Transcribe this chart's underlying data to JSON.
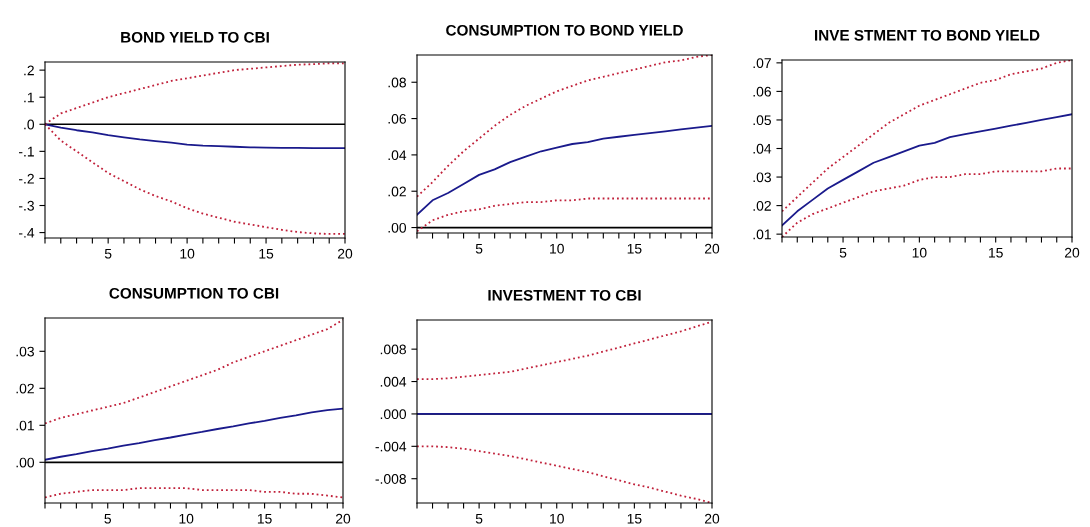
{
  "chart_data": [
    {
      "type": "line",
      "title": "BOND YIELD TO CBI",
      "x": [
        1,
        2,
        3,
        4,
        5,
        6,
        7,
        8,
        9,
        10,
        11,
        12,
        13,
        14,
        15,
        16,
        17,
        18,
        19,
        20
      ],
      "xlim": [
        1,
        20
      ],
      "xticks": [
        {
          "value": 1,
          "label": null
        },
        {
          "value": 2,
          "label": null
        },
        {
          "value": 3,
          "label": null
        },
        {
          "value": 4,
          "label": null
        },
        5,
        {
          "value": 6,
          "label": null
        },
        {
          "value": 7,
          "label": null
        },
        {
          "value": 8,
          "label": null
        },
        {
          "value": 9,
          "label": null
        },
        10,
        {
          "value": 11,
          "label": null
        },
        {
          "value": 12,
          "label": null
        },
        {
          "value": 13,
          "label": null
        },
        {
          "value": 14,
          "label": null
        },
        15,
        {
          "value": 16,
          "label": null
        },
        {
          "value": 17,
          "label": null
        },
        {
          "value": 18,
          "label": null
        },
        {
          "value": 19,
          "label": null
        },
        20
      ],
      "ylim": [
        -0.42,
        0.23
      ],
      "yticks": [
        {
          "value": 0.2,
          "label": ".2"
        },
        {
          "value": 0.1,
          "label": ".1"
        },
        {
          "value": 0,
          "label": ".0"
        },
        {
          "value": -0.1,
          "label": "-.1"
        },
        {
          "value": -0.2,
          "label": "-.2"
        },
        {
          "value": -0.3,
          "label": "-.3"
        },
        {
          "value": -0.4,
          "label": "-.4"
        }
      ],
      "grid": false,
      "legend": false,
      "ref_lines": [
        {
          "axis": "y",
          "value": 0,
          "color": "#000000"
        }
      ],
      "series": [
        {
          "color": "#c0203a",
          "line_style": "dotted",
          "values": [
            0,
            0.04,
            0.06,
            0.08,
            0.1,
            0.115,
            0.13,
            0.145,
            0.16,
            0.17,
            0.18,
            0.19,
            0.2,
            0.205,
            0.21,
            0.215,
            0.22,
            0.222,
            0.225,
            0.225
          ]
        },
        {
          "color": "#1a1a8c",
          "line_style": "solid",
          "values": [
            0,
            -0.012,
            -0.022,
            -0.03,
            -0.04,
            -0.048,
            -0.056,
            -0.062,
            -0.068,
            -0.075,
            -0.079,
            -0.081,
            -0.083,
            -0.085,
            -0.086,
            -0.087,
            -0.087,
            -0.088,
            -0.088,
            -0.088
          ]
        },
        {
          "color": "#c0203a",
          "line_style": "dotted",
          "values": [
            0,
            -0.06,
            -0.1,
            -0.14,
            -0.18,
            -0.21,
            -0.24,
            -0.265,
            -0.285,
            -0.31,
            -0.33,
            -0.345,
            -0.36,
            -0.37,
            -0.38,
            -0.39,
            -0.398,
            -0.403,
            -0.405,
            -0.405
          ]
        }
      ]
    },
    {
      "type": "line",
      "title": "CONSUMPTION TO BOND YIELD",
      "x": [
        1,
        2,
        3,
        4,
        5,
        6,
        7,
        8,
        9,
        10,
        11,
        12,
        13,
        14,
        15,
        16,
        17,
        18,
        19,
        20
      ],
      "xlim": [
        1,
        20
      ],
      "xticks": [
        {
          "value": 1,
          "label": null
        },
        {
          "value": 2,
          "label": null
        },
        {
          "value": 3,
          "label": null
        },
        {
          "value": 4,
          "label": null
        },
        5,
        {
          "value": 6,
          "label": null
        },
        {
          "value": 7,
          "label": null
        },
        {
          "value": 8,
          "label": null
        },
        {
          "value": 9,
          "label": null
        },
        10,
        {
          "value": 11,
          "label": null
        },
        {
          "value": 12,
          "label": null
        },
        {
          "value": 13,
          "label": null
        },
        {
          "value": 14,
          "label": null
        },
        15,
        {
          "value": 16,
          "label": null
        },
        {
          "value": 17,
          "label": null
        },
        {
          "value": 18,
          "label": null
        },
        {
          "value": 19,
          "label": null
        },
        20
      ],
      "ylim": [
        -0.003,
        0.095
      ],
      "yticks": [
        {
          "value": 0,
          "label": ".00"
        },
        {
          "value": 0.02,
          "label": ".02"
        },
        {
          "value": 0.04,
          "label": ".04"
        },
        {
          "value": 0.06,
          "label": ".06"
        },
        {
          "value": 0.08,
          "label": ".08"
        }
      ],
      "grid": false,
      "legend": false,
      "ref_lines": [
        {
          "axis": "y",
          "value": 0,
          "color": "#000000"
        }
      ],
      "series": [
        {
          "color": "#c0203a",
          "line_style": "dotted",
          "values": [
            0.017,
            0.025,
            0.034,
            0.042,
            0.049,
            0.056,
            0.062,
            0.067,
            0.071,
            0.075,
            0.078,
            0.081,
            0.083,
            0.085,
            0.087,
            0.089,
            0.091,
            0.092,
            0.094,
            0.095
          ]
        },
        {
          "color": "#1a1a8c",
          "line_style": "solid",
          "values": [
            0.007,
            0.015,
            0.019,
            0.024,
            0.029,
            0.032,
            0.036,
            0.039,
            0.042,
            0.044,
            0.046,
            0.047,
            0.049,
            0.05,
            0.051,
            0.052,
            0.053,
            0.054,
            0.055,
            0.056
          ]
        },
        {
          "color": "#c0203a",
          "line_style": "dotted",
          "values": [
            -0.002,
            0.004,
            0.007,
            0.009,
            0.01,
            0.012,
            0.013,
            0.014,
            0.014,
            0.015,
            0.015,
            0.016,
            0.016,
            0.016,
            0.016,
            0.016,
            0.016,
            0.016,
            0.016,
            0.016
          ]
        }
      ]
    },
    {
      "type": "line",
      "title": "INVE STMENT TO BOND YIELD",
      "x": [
        1,
        2,
        3,
        4,
        5,
        6,
        7,
        8,
        9,
        10,
        11,
        12,
        13,
        14,
        15,
        16,
        17,
        18,
        19,
        20
      ],
      "xlim": [
        1,
        20
      ],
      "xticks": [
        {
          "value": 1,
          "label": null
        },
        {
          "value": 2,
          "label": null
        },
        {
          "value": 3,
          "label": null
        },
        {
          "value": 4,
          "label": null
        },
        5,
        {
          "value": 6,
          "label": null
        },
        {
          "value": 7,
          "label": null
        },
        {
          "value": 8,
          "label": null
        },
        {
          "value": 9,
          "label": null
        },
        10,
        {
          "value": 11,
          "label": null
        },
        {
          "value": 12,
          "label": null
        },
        {
          "value": 13,
          "label": null
        },
        {
          "value": 14,
          "label": null
        },
        15,
        {
          "value": 16,
          "label": null
        },
        {
          "value": 17,
          "label": null
        },
        {
          "value": 18,
          "label": null
        },
        {
          "value": 19,
          "label": null
        },
        20
      ],
      "ylim": [
        0.009,
        0.071
      ],
      "yticks": [
        {
          "value": 0.01,
          "label": ".01"
        },
        {
          "value": 0.02,
          "label": ".02"
        },
        {
          "value": 0.03,
          "label": ".03"
        },
        {
          "value": 0.04,
          "label": ".04"
        },
        {
          "value": 0.05,
          "label": ".05"
        },
        {
          "value": 0.06,
          "label": ".06"
        },
        {
          "value": 0.07,
          "label": ".07"
        }
      ],
      "grid": false,
      "legend": false,
      "series": [
        {
          "color": "#c0203a",
          "line_style": "dotted",
          "values": [
            0.018,
            0.023,
            0.028,
            0.033,
            0.037,
            0.041,
            0.045,
            0.049,
            0.052,
            0.055,
            0.057,
            0.059,
            0.061,
            0.063,
            0.064,
            0.066,
            0.067,
            0.068,
            0.07,
            0.071
          ]
        },
        {
          "color": "#1a1a8c",
          "line_style": "solid",
          "values": [
            0.013,
            0.018,
            0.022,
            0.026,
            0.029,
            0.032,
            0.035,
            0.037,
            0.039,
            0.041,
            0.042,
            0.044,
            0.045,
            0.046,
            0.047,
            0.048,
            0.049,
            0.05,
            0.051,
            0.052
          ]
        },
        {
          "color": "#c0203a",
          "line_style": "dotted",
          "values": [
            0.009,
            0.014,
            0.017,
            0.019,
            0.021,
            0.023,
            0.025,
            0.026,
            0.027,
            0.029,
            0.03,
            0.03,
            0.031,
            0.031,
            0.032,
            0.032,
            0.032,
            0.032,
            0.033,
            0.033
          ]
        }
      ]
    },
    {
      "type": "line",
      "title": "CONSUMPTION TO CBI",
      "x": [
        1,
        2,
        3,
        4,
        5,
        6,
        7,
        8,
        9,
        10,
        11,
        12,
        13,
        14,
        15,
        16,
        17,
        18,
        19,
        20
      ],
      "xlim": [
        1,
        20
      ],
      "xticks": [
        {
          "value": 1,
          "label": null
        },
        {
          "value": 2,
          "label": null
        },
        {
          "value": 3,
          "label": null
        },
        {
          "value": 4,
          "label": null
        },
        5,
        {
          "value": 6,
          "label": null
        },
        {
          "value": 7,
          "label": null
        },
        {
          "value": 8,
          "label": null
        },
        {
          "value": 9,
          "label": null
        },
        10,
        {
          "value": 11,
          "label": null
        },
        {
          "value": 12,
          "label": null
        },
        {
          "value": 13,
          "label": null
        },
        {
          "value": 14,
          "label": null
        },
        15,
        {
          "value": 16,
          "label": null
        },
        {
          "value": 17,
          "label": null
        },
        {
          "value": 18,
          "label": null
        },
        {
          "value": 19,
          "label": null
        },
        20
      ],
      "ylim": [
        -0.011,
        0.039
      ],
      "yticks": [
        {
          "value": 0,
          "label": ".00"
        },
        {
          "value": 0.01,
          "label": ".01"
        },
        {
          "value": 0.02,
          "label": ".02"
        },
        {
          "value": 0.03,
          "label": ".03"
        }
      ],
      "grid": false,
      "legend": false,
      "ref_lines": [
        {
          "axis": "y",
          "value": 0,
          "color": "#000000"
        }
      ],
      "series": [
        {
          "color": "#c0203a",
          "line_style": "dotted",
          "values": [
            0.0105,
            0.012,
            0.013,
            0.014,
            0.015,
            0.016,
            0.0175,
            0.019,
            0.0205,
            0.022,
            0.0235,
            0.025,
            0.027,
            0.0285,
            0.03,
            0.0315,
            0.033,
            0.0345,
            0.036,
            0.0385
          ]
        },
        {
          "color": "#1a1a8c",
          "line_style": "solid",
          "values": [
            0.0007,
            0.0015,
            0.0022,
            0.003,
            0.0037,
            0.0045,
            0.0052,
            0.006,
            0.0067,
            0.0075,
            0.0082,
            0.009,
            0.0097,
            0.0105,
            0.0112,
            0.012,
            0.0127,
            0.0135,
            0.0141,
            0.0145
          ]
        },
        {
          "color": "#c0203a",
          "line_style": "dotted",
          "values": [
            -0.0095,
            -0.0085,
            -0.008,
            -0.0075,
            -0.0075,
            -0.0075,
            -0.007,
            -0.007,
            -0.007,
            -0.007,
            -0.0075,
            -0.0075,
            -0.0075,
            -0.0075,
            -0.008,
            -0.008,
            -0.0085,
            -0.0085,
            -0.009,
            -0.0095
          ]
        }
      ]
    },
    {
      "type": "line",
      "title": "INVESTMENT TO CBI",
      "x": [
        1,
        2,
        3,
        4,
        5,
        6,
        7,
        8,
        9,
        10,
        11,
        12,
        13,
        14,
        15,
        16,
        17,
        18,
        19,
        20
      ],
      "xlim": [
        1,
        20
      ],
      "xticks": [
        {
          "value": 1,
          "label": null
        },
        {
          "value": 2,
          "label": null
        },
        {
          "value": 3,
          "label": null
        },
        {
          "value": 4,
          "label": null
        },
        5,
        {
          "value": 6,
          "label": null
        },
        {
          "value": 7,
          "label": null
        },
        {
          "value": 8,
          "label": null
        },
        {
          "value": 9,
          "label": null
        },
        10,
        {
          "value": 11,
          "label": null
        },
        {
          "value": 12,
          "label": null
        },
        {
          "value": 13,
          "label": null
        },
        {
          "value": 14,
          "label": null
        },
        15,
        {
          "value": 16,
          "label": null
        },
        {
          "value": 17,
          "label": null
        },
        {
          "value": 18,
          "label": null
        },
        {
          "value": 19,
          "label": null
        },
        20
      ],
      "ylim": [
        -0.011,
        0.0116
      ],
      "yticks": [
        {
          "value": 0.008,
          "label": ".008"
        },
        {
          "value": 0.004,
          "label": ".004"
        },
        {
          "value": 0,
          "label": ".000"
        },
        {
          "value": -0.004,
          "label": "-.004"
        },
        {
          "value": -0.008,
          "label": "-.008"
        }
      ],
      "grid": false,
      "legend": false,
      "ref_lines": [
        {
          "axis": "y",
          "value": 0,
          "color": "#000000"
        }
      ],
      "series": [
        {
          "color": "#c0203a",
          "line_style": "dotted",
          "values": [
            0.0043,
            0.0043,
            0.0044,
            0.0046,
            0.0048,
            0.005,
            0.0052,
            0.0056,
            0.006,
            0.0064,
            0.0068,
            0.0072,
            0.0077,
            0.0082,
            0.0087,
            0.0092,
            0.0097,
            0.0102,
            0.0108,
            0.0114
          ]
        },
        {
          "color": "#1a1a8c",
          "line_style": "solid",
          "values": [
            0,
            0,
            0,
            0,
            0,
            0,
            0,
            0,
            0,
            0,
            0,
            0,
            0,
            0,
            0,
            0,
            0,
            0,
            0,
            0
          ]
        },
        {
          "color": "#c0203a",
          "line_style": "dotted",
          "values": [
            -0.004,
            -0.004,
            -0.0041,
            -0.0043,
            -0.0046,
            -0.0049,
            -0.0052,
            -0.0056,
            -0.006,
            -0.0064,
            -0.0068,
            -0.0072,
            -0.0077,
            -0.0082,
            -0.0087,
            -0.0091,
            -0.0096,
            -0.0101,
            -0.0105,
            -0.011
          ]
        }
      ]
    }
  ]
}
